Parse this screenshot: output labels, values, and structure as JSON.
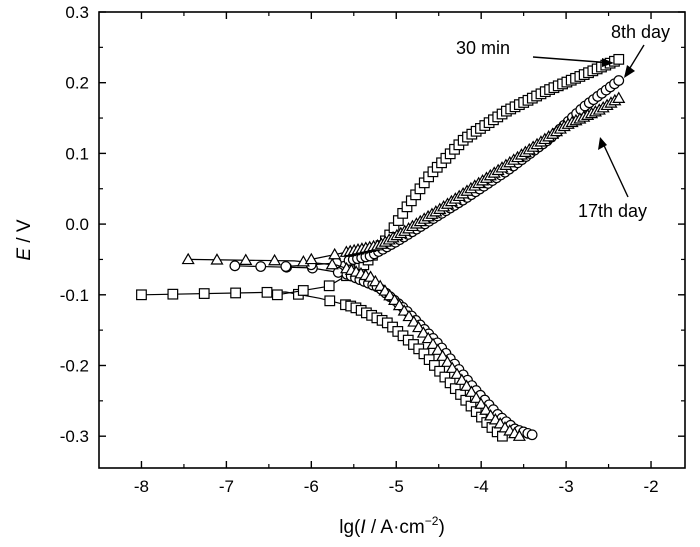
{
  "chart_data": {
    "type": "scatter",
    "xlabel": {
      "pre": "lg(",
      "var": "I",
      "mid": " / A·cm",
      "sup": "−2",
      "post": ")"
    },
    "ylabel": {
      "var": "E",
      "post": " / V"
    },
    "xlim": [
      -8.5,
      -1.6
    ],
    "ylim": [
      -0.345,
      0.3
    ],
    "xticks": [
      -8,
      -7,
      -6,
      -5,
      -4,
      -3,
      -2
    ],
    "yticks": [
      -0.3,
      -0.2,
      -0.1,
      0.0,
      0.1,
      0.2,
      0.3
    ],
    "xtick_labels": [
      "-8",
      "-7",
      "-6",
      "-5",
      "-4",
      "-3",
      "-2"
    ],
    "ytick_labels": [
      "-0.3",
      "-0.2",
      "-0.1",
      "0.0",
      "0.1",
      "0.2",
      "0.3"
    ],
    "grid": false,
    "series": [
      {
        "name": "30 min",
        "marker": "square",
        "ecorr": -0.1,
        "cathodic": [
          [
            -8.0,
            -0.1
          ],
          [
            -6.3,
            -0.096
          ],
          [
            -5.9,
            -0.105
          ],
          [
            -5.5,
            -0.117
          ],
          [
            -5.1,
            -0.14
          ],
          [
            -4.7,
            -0.18
          ],
          [
            -4.4,
            -0.22
          ],
          [
            -4.1,
            -0.26
          ],
          [
            -3.9,
            -0.285
          ],
          [
            -3.75,
            -0.3
          ]
        ],
        "anodic": [
          [
            -6.4,
            -0.1
          ],
          [
            -5.8,
            -0.088
          ],
          [
            -5.4,
            -0.06
          ],
          [
            -5.1,
            -0.02
          ],
          [
            -4.9,
            0.02
          ],
          [
            -4.6,
            0.07
          ],
          [
            -4.2,
            0.12
          ],
          [
            -3.7,
            0.16
          ],
          [
            -3.2,
            0.19
          ],
          [
            -2.7,
            0.216
          ],
          [
            -2.38,
            0.233
          ]
        ]
      },
      {
        "name": "8th day",
        "marker": "circle",
        "ecorr": -0.06,
        "cathodic": [
          [
            -6.9,
            -0.059
          ],
          [
            -6.0,
            -0.062
          ],
          [
            -5.6,
            -0.07
          ],
          [
            -5.2,
            -0.09
          ],
          [
            -4.9,
            -0.12
          ],
          [
            -4.5,
            -0.17
          ],
          [
            -4.1,
            -0.23
          ],
          [
            -3.8,
            -0.27
          ],
          [
            -3.6,
            -0.29
          ],
          [
            -3.4,
            -0.298
          ]
        ],
        "anodic": [
          [
            -6.3,
            -0.06
          ],
          [
            -5.7,
            -0.055
          ],
          [
            -5.3,
            -0.045
          ],
          [
            -5.0,
            -0.025
          ],
          [
            -4.6,
            0.005
          ],
          [
            -4.2,
            0.035
          ],
          [
            -3.7,
            0.075
          ],
          [
            -3.2,
            0.12
          ],
          [
            -2.8,
            0.165
          ],
          [
            -2.38,
            0.203
          ]
        ]
      },
      {
        "name": "17th day",
        "marker": "triangle",
        "ecorr": -0.05,
        "cathodic": [
          [
            -7.45,
            -0.05
          ],
          [
            -6.2,
            -0.052
          ],
          [
            -5.7,
            -0.058
          ],
          [
            -5.3,
            -0.075
          ],
          [
            -5.0,
            -0.11
          ],
          [
            -4.6,
            -0.165
          ],
          [
            -4.2,
            -0.225
          ],
          [
            -3.9,
            -0.27
          ],
          [
            -3.7,
            -0.29
          ],
          [
            -3.55,
            -0.3
          ]
        ],
        "anodic": [
          [
            -6.0,
            -0.05
          ],
          [
            -5.6,
            -0.04
          ],
          [
            -5.2,
            -0.03
          ],
          [
            -4.9,
            -0.01
          ],
          [
            -4.5,
            0.02
          ],
          [
            -4.0,
            0.06
          ],
          [
            -3.5,
            0.1
          ],
          [
            -3.0,
            0.14
          ],
          [
            -2.6,
            0.162
          ],
          [
            -2.38,
            0.178
          ]
        ]
      }
    ],
    "annotations": [
      {
        "text": "30 min",
        "target_x": -2.4,
        "target_y": 0.232
      },
      {
        "text": "8th day",
        "target_x": -2.36,
        "target_y": 0.203
      },
      {
        "text": "17th day",
        "target_x": -2.96,
        "target_y": 0.125
      }
    ]
  }
}
